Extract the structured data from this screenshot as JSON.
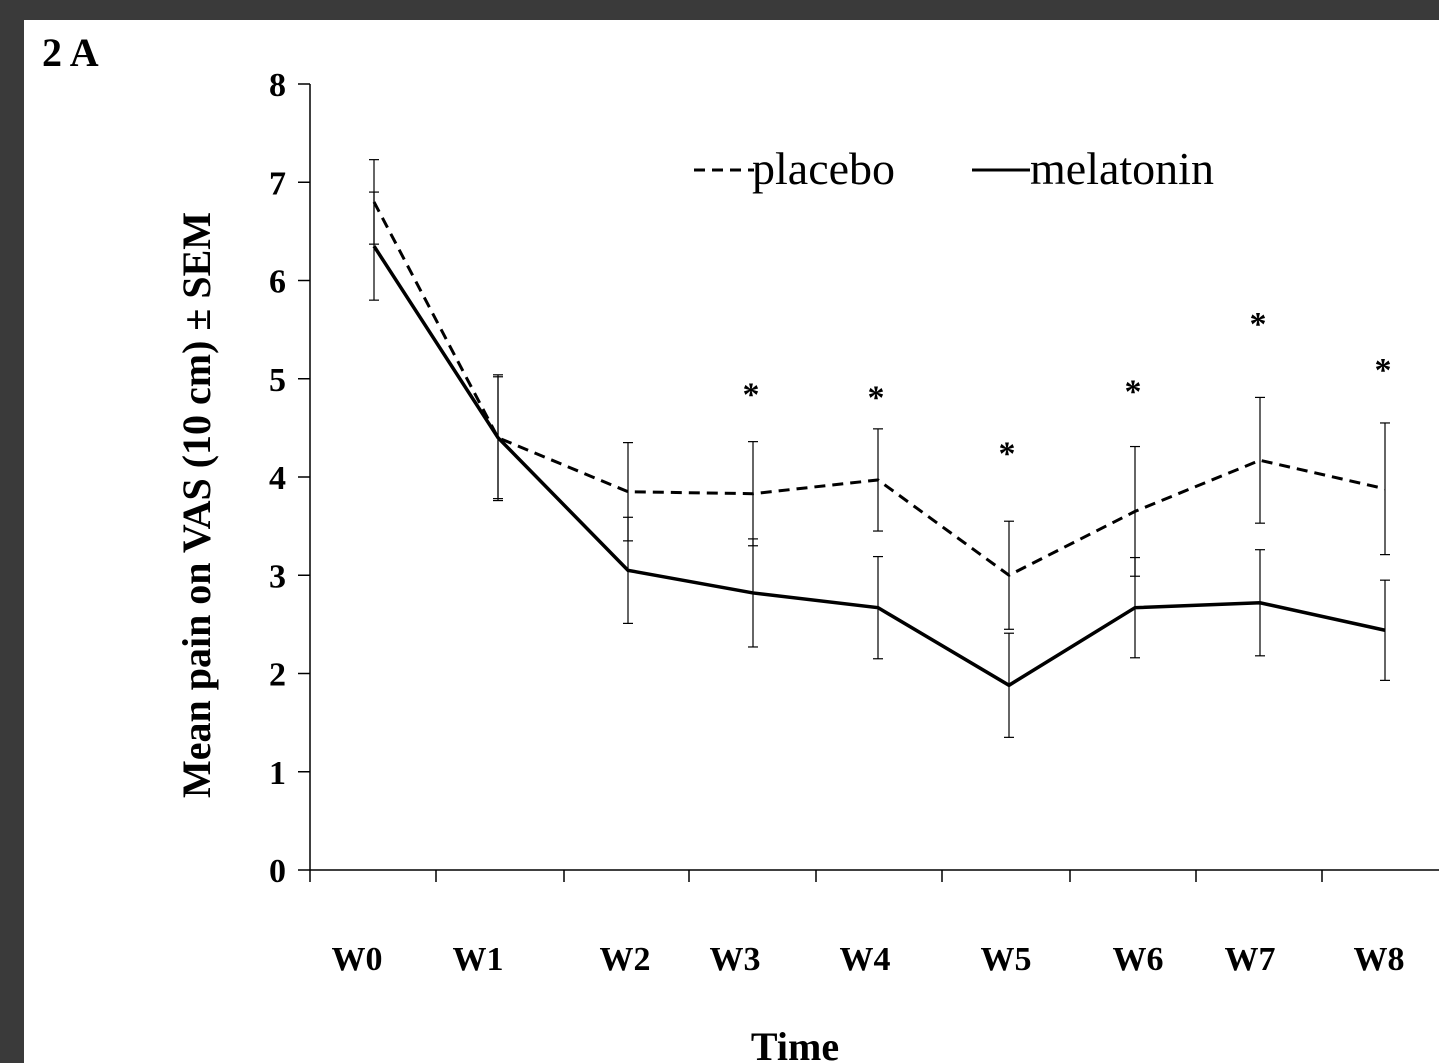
{
  "panel_label": "2 A",
  "chart_data": {
    "type": "line",
    "ylabel": "Mean pain on VAS (10 cm)  ± SEM",
    "xlabel": "Time",
    "x": [
      "W0",
      "W1",
      "W2",
      "W3",
      "W4",
      "W5",
      "W6",
      "W7",
      "W8"
    ],
    "ylim": [
      0,
      8
    ],
    "yticks": [
      0,
      1,
      2,
      3,
      4,
      5,
      6,
      7,
      8
    ],
    "grid": false,
    "legend_position": "top-right",
    "series": [
      {
        "name": "placebo",
        "line_style": "dashed",
        "color": "#000000",
        "values": [
          6.8,
          4.4,
          3.85,
          3.83,
          3.97,
          3.0,
          3.65,
          4.17,
          3.88
        ],
        "error": [
          0.43,
          0.64,
          0.5,
          0.53,
          0.52,
          0.55,
          0.66,
          0.64,
          0.67
        ]
      },
      {
        "name": "melatonin",
        "line_style": "solid",
        "color": "#000000",
        "values": [
          6.35,
          4.4,
          3.05,
          2.82,
          2.67,
          1.88,
          2.67,
          2.72,
          2.44
        ],
        "error": [
          0.55,
          0.62,
          0.54,
          0.55,
          0.52,
          0.53,
          0.51,
          0.54,
          0.51
        ]
      }
    ],
    "significance_markers": [
      {
        "x": "W3",
        "label": "*",
        "y": 4.95
      },
      {
        "x": "W4",
        "label": "*",
        "y": 4.92
      },
      {
        "x": "W5",
        "label": "*",
        "y": 4.35
      },
      {
        "x": "W6",
        "label": "*",
        "y": 4.98
      },
      {
        "x": "W7",
        "label": "*",
        "y": 5.67
      },
      {
        "x": "W8",
        "label": "*",
        "y": 5.2
      }
    ]
  }
}
